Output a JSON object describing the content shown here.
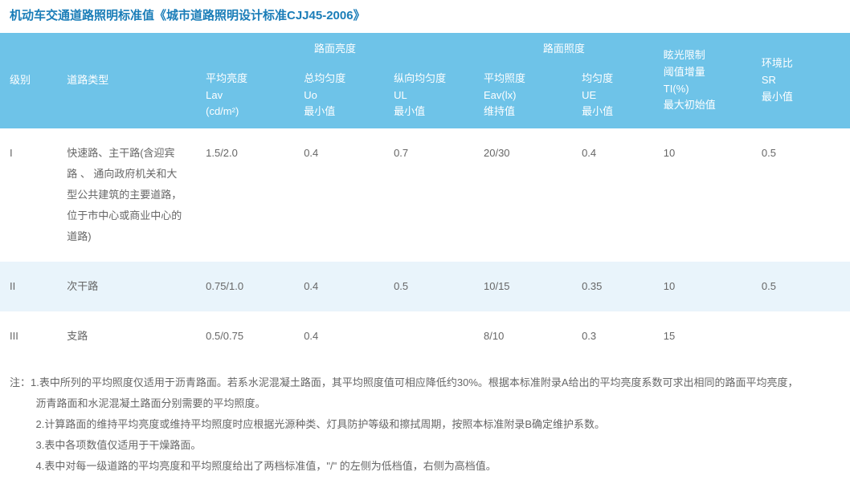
{
  "title": "机动车交通道路照明标准值《城市道路照明设计标准CJJ45-2006》",
  "headers": {
    "level": "级别",
    "roadtype": "道路类型",
    "group_luminance": "路面亮度",
    "group_illuminance": "路面照度",
    "lav": "平均亮度\nLav\n(cd/m²)",
    "uo": "总均匀度\nUo\n最小值",
    "ul": "纵向均匀度\nUL\n最小值",
    "eav": "平均照度\nEav(lx)\n维持值",
    "ue": "均匀度\nUE\n最小值",
    "ti": "眩光限制\n阈值增量\nTI(%)\n最大初始值",
    "sr": "环境比\nSR\n最小值"
  },
  "rows": [
    {
      "level": "I",
      "roadtype": "快速路、主干路(含迎宾 路 、 通向政府机关和大型公共建筑的主要道路，位于市中心或商业中心的道路)",
      "lav": "1.5/2.0",
      "uo": "0.4",
      "ul": "0.7",
      "eav": "20/30",
      "ue": "0.4",
      "ti": "10",
      "sr": "0.5"
    },
    {
      "level": "II",
      "roadtype": "次干路",
      "lav": "0.75/1.0",
      "uo": "0.4",
      "ul": "0.5",
      "eav": "10/15",
      "ue": "0.35",
      "ti": "10",
      "sr": "0.5"
    },
    {
      "level": "III",
      "roadtype": "支路",
      "lav": "0.5/0.75",
      "uo": "0.4",
      "ul": "",
      "eav": "8/10",
      "ue": "0.3",
      "ti": "15",
      "sr": ""
    }
  ],
  "notes": {
    "prefix": "注：",
    "items": [
      "1.表中所列的平均照度仅适用于沥青路面。若系水泥混凝土路面，其平均照度值可相应降低约30%。根据本标准附录A给出的平均亮度系数可求出相同的路面平均亮度，",
      "沥青路面和水泥混凝土路面分别需要的平均照度。",
      "2.计算路面的维持平均亮度或维持平均照度时应根据光源种类、灯具防护等级和擦拭周期，按照本标准附录B确定维护系数。",
      "3.表中各项数值仅适用于干燥路面。",
      "4.表中对每一级道路的平均亮度和平均照度给出了两档标准值，\"/\" 的左侧为低档值，右侧为高档值。"
    ]
  },
  "colors": {
    "title": "#1a7db8",
    "header_bg": "#6ec3e8",
    "header_text": "#ffffff",
    "row_odd_bg": "#ffffff",
    "row_even_bg": "#e9f4fb",
    "body_text": "#666666"
  }
}
